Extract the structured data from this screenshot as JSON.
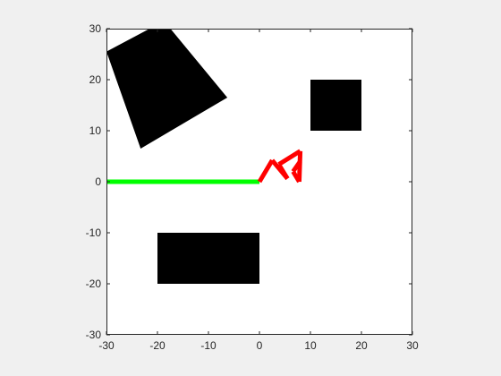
{
  "chart_data": {
    "type": "scatter",
    "title": "",
    "xlabel": "",
    "ylabel": "",
    "xlim": [
      -30,
      30
    ],
    "ylim": [
      -30,
      30
    ],
    "grid": false,
    "xticks": [
      -30,
      -20,
      -10,
      0,
      10,
      20,
      30
    ],
    "yticks": [
      -30,
      -20,
      -10,
      0,
      10,
      20,
      30
    ],
    "xtick_labels": [
      "-30",
      "-20",
      "-10",
      "0",
      "10",
      "20",
      "30"
    ],
    "ytick_labels": [
      "-30",
      "-20",
      "-10",
      "0",
      "10",
      "20",
      "30"
    ],
    "colors": {
      "background": "#f0f0f0",
      "axes": "#ffffff",
      "axis_line": "#262626",
      "obstacle": "#000000",
      "path": "#00ff00",
      "arm": "#ff0000"
    },
    "obstacles": [
      {
        "name": "rotated-square-obstacle",
        "points": [
          [
            -30,
            25.5
          ],
          [
            -18.7,
            31.5
          ],
          [
            -6.3,
            16.5
          ],
          [
            -23.3,
            6.5
          ]
        ]
      },
      {
        "name": "square-obstacle",
        "points": [
          [
            10,
            10
          ],
          [
            20,
            10
          ],
          [
            20,
            20
          ],
          [
            10,
            20
          ]
        ]
      },
      {
        "name": "rectangle-obstacle",
        "points": [
          [
            -20,
            -20
          ],
          [
            0,
            -20
          ],
          [
            0,
            -10
          ],
          [
            -20,
            -10
          ]
        ]
      }
    ],
    "series": [
      {
        "kind": "path",
        "x": [
          -30,
          -20,
          -10,
          0
        ],
        "y": [
          0,
          0,
          0,
          0
        ]
      },
      {
        "kind": "arm",
        "segments": [
          [
            [
              0,
              0
            ],
            [
              2.5,
              4.2
            ]
          ],
          [
            [
              2.5,
              4.2
            ],
            [
              5.5,
              0.6
            ]
          ],
          [
            [
              5.5,
              0.6
            ],
            [
              3.8,
              3.4
            ]
          ],
          [
            [
              3.8,
              3.4
            ],
            [
              8,
              6
            ]
          ],
          [
            [
              8,
              6
            ],
            [
              7.8,
              0
            ]
          ],
          [
            [
              7.8,
              0
            ],
            [
              6.6,
              2
            ]
          ],
          [
            [
              6.6,
              2
            ],
            [
              8,
              4
            ]
          ]
        ]
      }
    ]
  }
}
